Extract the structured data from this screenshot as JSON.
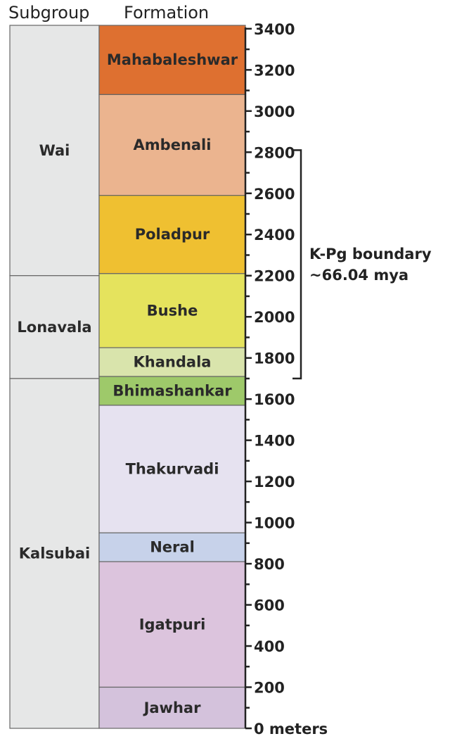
{
  "headers": {
    "subgroup": "Subgroup",
    "formation": "Formation"
  },
  "scale": {
    "min": 0,
    "max": 3400,
    "major_step": 200,
    "minor_step": 100,
    "last_label": "0 meters"
  },
  "subgroups": [
    {
      "name": "Wai",
      "base": 2200,
      "top": 3400
    },
    {
      "name": "Lonavala",
      "base": 1700,
      "top": 2200
    },
    {
      "name": "Kalsubai",
      "base": 0,
      "top": 1700
    }
  ],
  "formations": [
    {
      "name": "Mahabaleshwar",
      "base": 3080,
      "top": 3450,
      "color": "#de7030"
    },
    {
      "name": "Ambenali",
      "base": 2590,
      "top": 3080,
      "color": "#ebb48f"
    },
    {
      "name": "Poladpur",
      "base": 2210,
      "top": 2590,
      "color": "#efc031"
    },
    {
      "name": "Bushe",
      "base": 1850,
      "top": 2210,
      "color": "#e5e35d"
    },
    {
      "name": "Khandala",
      "base": 1710,
      "top": 1850,
      "color": "#d9e4ac"
    },
    {
      "name": "Bhimashankar",
      "base": 1570,
      "top": 1710,
      "color": "#9ec96a"
    },
    {
      "name": "Thakurvadi",
      "base": 950,
      "top": 1570,
      "color": "#e6e2f0"
    },
    {
      "name": "Neral",
      "base": 810,
      "top": 950,
      "color": "#c7d2ea"
    },
    {
      "name": "Igatpuri",
      "base": 200,
      "top": 810,
      "color": "#dcc4dd"
    },
    {
      "name": "Jawhar",
      "base": -30,
      "top": 200,
      "color": "#d4c2dc"
    }
  ],
  "kpg": {
    "label_line1": "K-Pg  boundary",
    "label_line2": "~66.04 mya",
    "from": 1700,
    "to": 2810
  },
  "colors": {
    "subgroup_fill": "#e6e7e7",
    "border": "#666666",
    "axis": "#222222"
  }
}
